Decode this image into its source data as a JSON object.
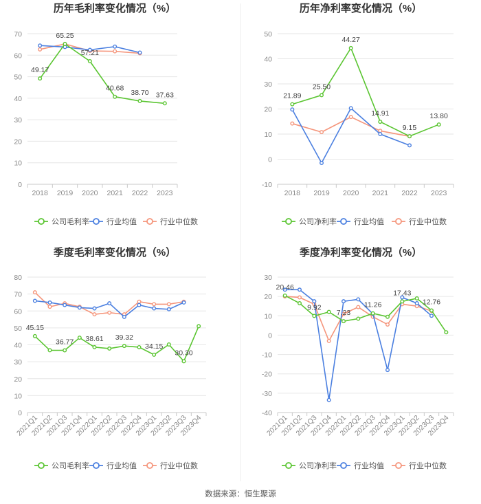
{
  "colors": {
    "company": "#5ac531",
    "industry_avg": "#4a7fe0",
    "industry_median": "#f5957b",
    "grid": "#e6e6e6",
    "axis": "#c8c8c8",
    "divider": "#eeeeee"
  },
  "source": "数据来源：恒生聚源",
  "chart_data": [
    {
      "type": "line",
      "title": "历年毛利率变化情况（%）",
      "categories": [
        "2018",
        "2019",
        "2020",
        "2021",
        "2022",
        "2023"
      ],
      "ylim": [
        0,
        70
      ],
      "yticks": [
        0,
        10,
        20,
        30,
        40,
        50,
        60,
        70
      ],
      "series": [
        {
          "name": "公司毛利率",
          "key": "company",
          "values": [
            49.17,
            65.25,
            57.21,
            40.68,
            38.7,
            37.63
          ]
        },
        {
          "name": "行业均值",
          "key": "industry_avg",
          "values": [
            64.5,
            63.8,
            62.5,
            64.0,
            61.2,
            null
          ]
        },
        {
          "name": "行业中位数",
          "key": "industry_median",
          "values": [
            62.7,
            65.2,
            62.0,
            61.8,
            60.9,
            null
          ]
        }
      ],
      "labels": [
        {
          "i": 0,
          "text": "49.17",
          "pos": "above"
        },
        {
          "i": 1,
          "text": "65.25",
          "pos": "above"
        },
        {
          "i": 2,
          "text": "57.21",
          "pos": "above"
        },
        {
          "i": 3,
          "text": "40.68",
          "pos": "above"
        },
        {
          "i": 4,
          "text": "38.70",
          "pos": "above"
        },
        {
          "i": 5,
          "text": "37.63",
          "pos": "above"
        }
      ]
    },
    {
      "type": "line",
      "title": "历年净利率变化情况（%）",
      "categories": [
        "2018",
        "2019",
        "2020",
        "2021",
        "2022",
        "2023"
      ],
      "ylim": [
        -10,
        50
      ],
      "yticks": [
        -10,
        0,
        10,
        20,
        30,
        40,
        50
      ],
      "series": [
        {
          "name": "公司净利率",
          "key": "company",
          "values": [
            21.89,
            25.5,
            44.27,
            14.91,
            9.15,
            13.8
          ]
        },
        {
          "name": "行业均值",
          "key": "industry_avg",
          "values": [
            19.8,
            -1.5,
            20.3,
            10.0,
            5.5,
            null
          ]
        },
        {
          "name": "行业中位数",
          "key": "industry_median",
          "values": [
            14.2,
            10.8,
            16.8,
            11.3,
            9.1,
            null
          ]
        }
      ],
      "labels": [
        {
          "i": 0,
          "text": "21.89",
          "pos": "above"
        },
        {
          "i": 1,
          "text": "25.50",
          "pos": "above"
        },
        {
          "i": 2,
          "text": "44.27",
          "pos": "above"
        },
        {
          "i": 3,
          "text": "14.91",
          "pos": "above"
        },
        {
          "i": 4,
          "text": "9.15",
          "pos": "above"
        },
        {
          "i": 5,
          "text": "13.80",
          "pos": "above"
        }
      ]
    },
    {
      "type": "line",
      "title": "季度毛利率变化情况（%）",
      "categories": [
        "2021Q1",
        "2021Q2",
        "2021Q3",
        "2021Q4",
        "2022Q1",
        "2022Q2",
        "2022Q3",
        "2022Q4",
        "2023Q1",
        "2023Q2",
        "2023Q3",
        "2023Q4"
      ],
      "ylim": [
        0,
        80
      ],
      "yticks": [
        0,
        10,
        20,
        30,
        40,
        50,
        60,
        70,
        80
      ],
      "series": [
        {
          "name": "公司毛利率",
          "key": "company",
          "values": [
            45.15,
            36.8,
            36.77,
            44.2,
            38.61,
            37.8,
            39.32,
            38.6,
            34.15,
            40.2,
            30.3,
            51.0
          ]
        },
        {
          "name": "行业均值",
          "key": "industry_avg",
          "values": [
            66.0,
            65.0,
            63.5,
            62.0,
            61.5,
            64.5,
            56.5,
            63.5,
            61.5,
            61.0,
            65.0,
            null
          ]
        },
        {
          "name": "行业中位数",
          "key": "industry_median",
          "values": [
            71.0,
            62.5,
            64.5,
            62.5,
            58.0,
            59.0,
            58.0,
            65.5,
            64.0,
            64.0,
            65.5,
            null
          ]
        }
      ],
      "labels": [
        {
          "i": 0,
          "text": "45.15",
          "pos": "above"
        },
        {
          "i": 2,
          "text": "36.77",
          "pos": "above"
        },
        {
          "i": 4,
          "text": "38.61",
          "pos": "above"
        },
        {
          "i": 6,
          "text": "39.32",
          "pos": "above"
        },
        {
          "i": 8,
          "text": "34.15",
          "pos": "above"
        },
        {
          "i": 10,
          "text": "30.30",
          "pos": "above"
        }
      ]
    },
    {
      "type": "line",
      "title": "季度净利率变化情况（%）",
      "categories": [
        "2021Q1",
        "2021Q2",
        "2021Q3",
        "2021Q4",
        "2022Q1",
        "2022Q2",
        "2022Q3",
        "2022Q4",
        "2023Q1",
        "2023Q2",
        "2023Q3",
        "2023Q4"
      ],
      "ylim": [
        -40,
        30
      ],
      "yticks": [
        -40,
        -30,
        -20,
        -10,
        0,
        10,
        20,
        30
      ],
      "series": [
        {
          "name": "公司净利率",
          "key": "company",
          "values": [
            20.46,
            16.5,
            9.92,
            12.0,
            7.23,
            8.5,
            11.26,
            9.5,
            17.43,
            19.0,
            12.76,
            1.5
          ]
        },
        {
          "name": "行业均值",
          "key": "industry_avg",
          "values": [
            23.5,
            23.5,
            17.5,
            -33.5,
            17.5,
            18.5,
            11.0,
            -18.0,
            19.5,
            16.5,
            10.0,
            null
          ]
        },
        {
          "name": "行业中位数",
          "key": "industry_median",
          "values": [
            20.0,
            19.5,
            16.0,
            -3.0,
            11.0,
            14.5,
            9.5,
            5.5,
            16.0,
            15.0,
            12.5,
            null
          ]
        }
      ],
      "labels": [
        {
          "i": 0,
          "text": "20.46",
          "pos": "above"
        },
        {
          "i": 2,
          "text": "9.92",
          "pos": "above"
        },
        {
          "i": 4,
          "text": "7.23",
          "pos": "above"
        },
        {
          "i": 6,
          "text": "11.26",
          "pos": "above"
        },
        {
          "i": 8,
          "text": "17.43",
          "pos": "above"
        },
        {
          "i": 10,
          "text": "12.76",
          "pos": "above"
        }
      ]
    }
  ]
}
